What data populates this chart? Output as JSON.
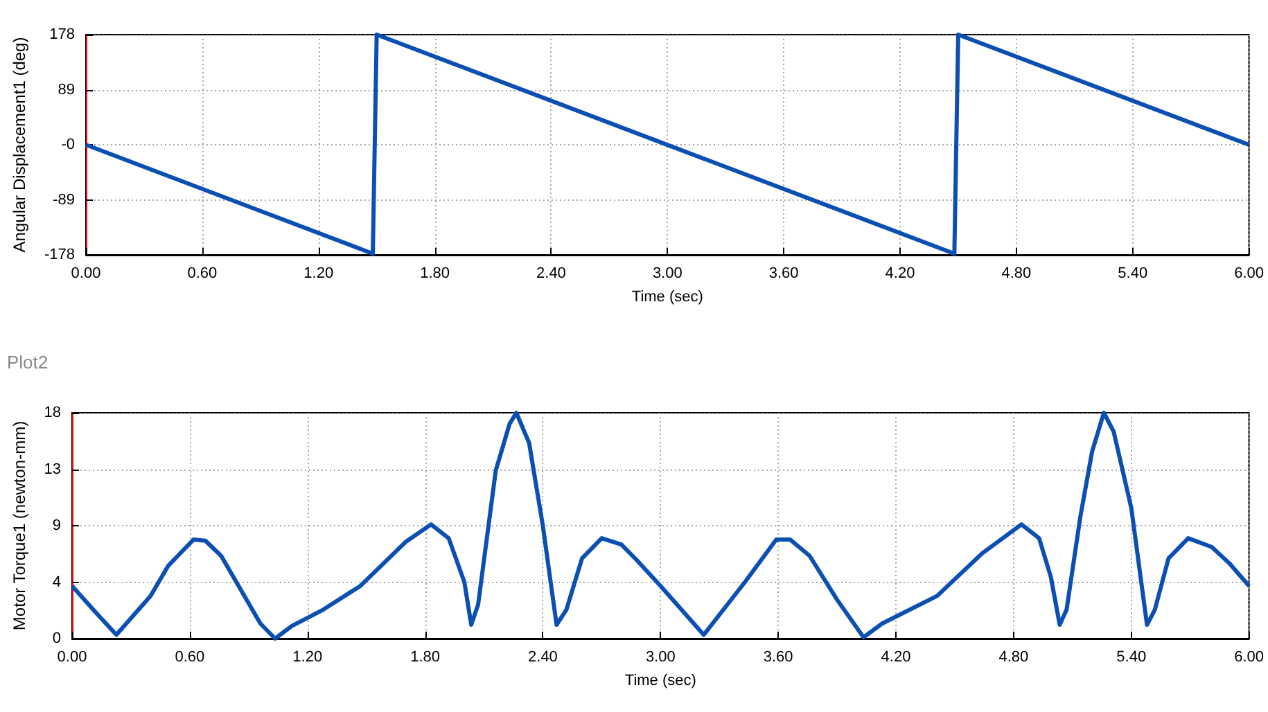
{
  "chart_data": [
    {
      "type": "line",
      "xlabel": "Time (sec)",
      "ylabel": "Angular Displacement1 (deg)",
      "x": [
        0,
        1.48,
        1.5,
        4.48,
        4.5,
        6.0
      ],
      "series": [
        {
          "color": "#0b4fb3",
          "values": [
            0,
            -176,
            178,
            -176,
            178,
            0
          ]
        }
      ],
      "xlim": [
        0,
        6
      ],
      "ylim": [
        -178,
        178
      ],
      "xticks": [
        {
          "value": 0,
          "label": "0.00"
        },
        {
          "value": 0.6,
          "label": "0.60"
        },
        {
          "value": 1.2,
          "label": "1.20"
        },
        {
          "value": 1.8,
          "label": "1.80"
        },
        {
          "value": 2.4,
          "label": "2.40"
        },
        {
          "value": 3,
          "label": "3.00"
        },
        {
          "value": 3.6,
          "label": "3.60"
        },
        {
          "value": 4.2,
          "label": "4.20"
        },
        {
          "value": 4.8,
          "label": "4.80"
        },
        {
          "value": 5.4,
          "label": "5.40"
        },
        {
          "value": 6,
          "label": "6.00"
        }
      ],
      "yticks": [
        -178,
        -89,
        {
          "value": 0,
          "label": "-0"
        },
        89,
        178
      ],
      "grid": true,
      "marker": "none",
      "line_style": "solid"
    },
    {
      "type": "line",
      "title": "Plot2",
      "xlabel": "Time (sec)",
      "ylabel": "Motor Torque1 (newton-mm)",
      "x": [
        0,
        0.12,
        0.226,
        0.4,
        0.49,
        0.62,
        0.68,
        0.76,
        0.96,
        1.035,
        1.12,
        1.28,
        1.47,
        1.7,
        1.83,
        1.92,
        2.0,
        2.035,
        2.07,
        2.16,
        2.23,
        2.265,
        2.33,
        2.4,
        2.47,
        2.52,
        2.6,
        2.7,
        2.8,
        2.87,
        3.0,
        3.22,
        3.43,
        3.59,
        3.66,
        3.76,
        3.9,
        4.035,
        4.13,
        4.41,
        4.64,
        4.84,
        4.93,
        4.99,
        5.035,
        5.07,
        5.14,
        5.2,
        5.26,
        5.31,
        5.4,
        5.48,
        5.52,
        5.59,
        5.69,
        5.81,
        5.9,
        6.0
      ],
      "series": [
        {
          "color": "#0b4fb3",
          "values": [
            4.2,
            2.1,
            0.3,
            3.4,
            5.8,
            7.9,
            7.8,
            6.6,
            1.2,
            0,
            1.0,
            2.3,
            4.2,
            7.7,
            9.1,
            8.0,
            4.5,
            1.1,
            2.7,
            13.4,
            17.1,
            18,
            15.6,
            9.0,
            1.1,
            2.3,
            6.4,
            8.0,
            7.5,
            6.4,
            4.2,
            0.3,
            4.5,
            7.9,
            7.9,
            6.6,
            3.1,
            0.1,
            1.2,
            3.4,
            6.8,
            9.1,
            8.0,
            4.9,
            1.1,
            2.3,
            9.7,
            14.9,
            18,
            16.5,
            10.4,
            1.1,
            2.3,
            6.4,
            8.0,
            7.3,
            6.0,
            4.2
          ]
        }
      ],
      "xlim": [
        0,
        6
      ],
      "ylim": [
        0,
        18
      ],
      "xticks": [
        {
          "value": 0,
          "label": "0.00"
        },
        {
          "value": 0.6,
          "label": "0.60"
        },
        {
          "value": 1.2,
          "label": "1.20"
        },
        {
          "value": 1.8,
          "label": "1.80"
        },
        {
          "value": 2.4,
          "label": "2.40"
        },
        {
          "value": 3,
          "label": "3.00"
        },
        {
          "value": 3.6,
          "label": "3.60"
        },
        {
          "value": 4.2,
          "label": "4.20"
        },
        {
          "value": 4.8,
          "label": "4.80"
        },
        {
          "value": 5.4,
          "label": "5.40"
        },
        {
          "value": 6,
          "label": "6.00"
        }
      ],
      "yticks": [
        0,
        {
          "value": 4.5,
          "label": "4"
        },
        9,
        {
          "value": 13.5,
          "label": "13"
        },
        18
      ],
      "grid": true,
      "marker": "none",
      "line_style": "solid"
    }
  ]
}
